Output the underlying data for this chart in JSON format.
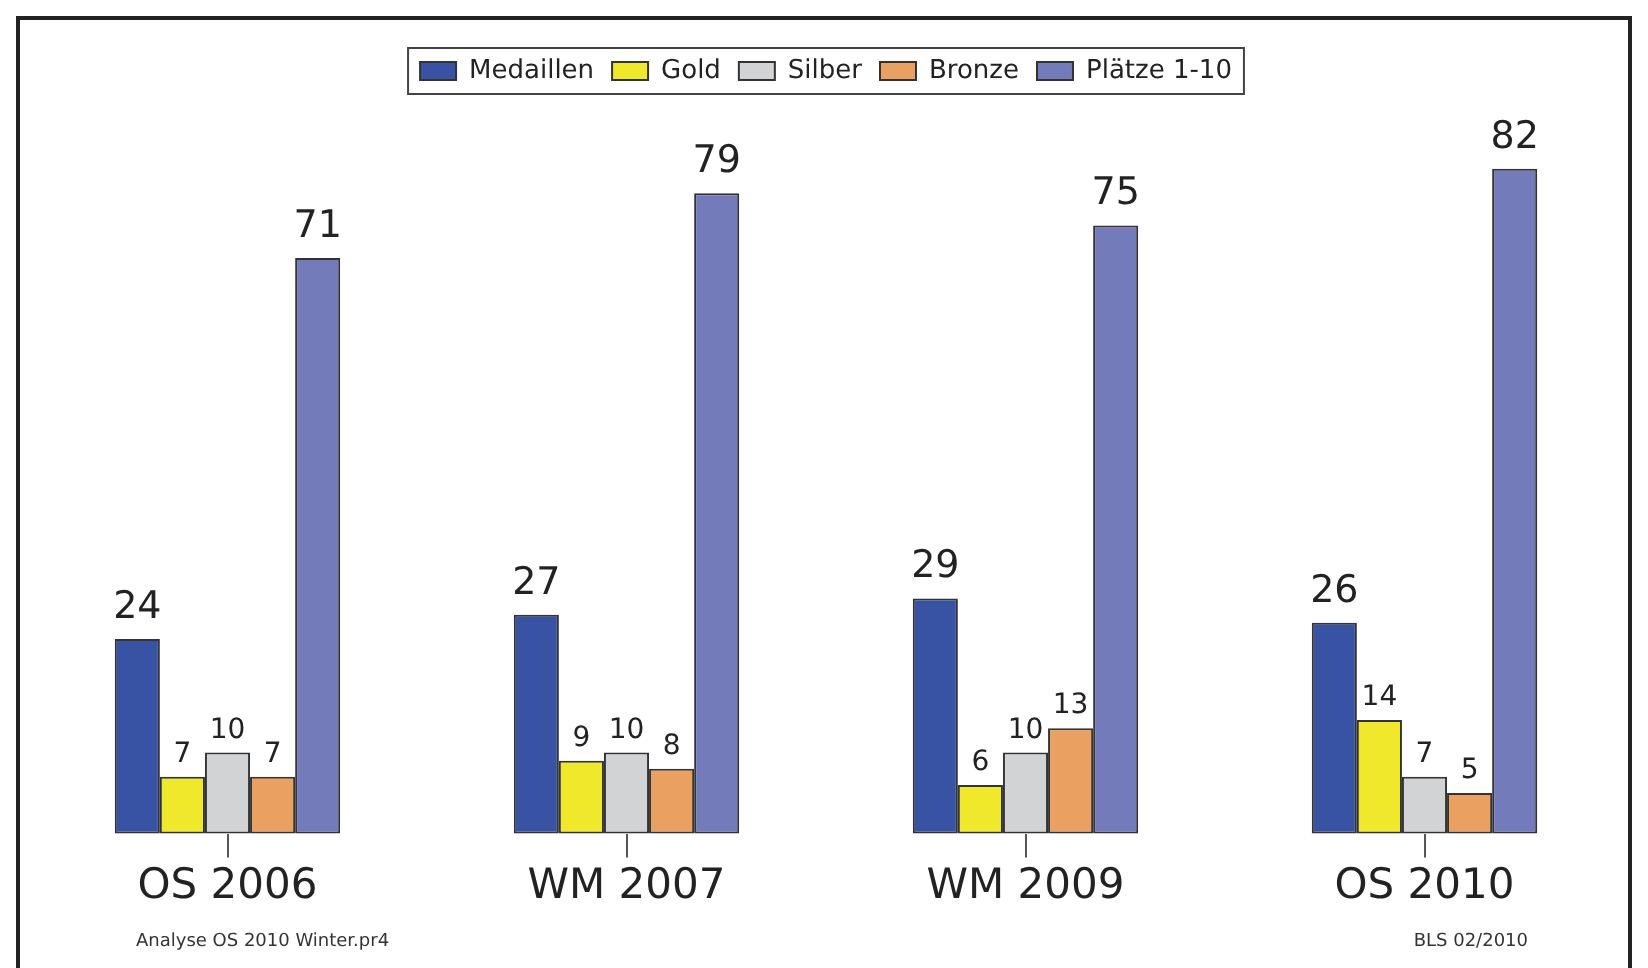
{
  "chart_data": {
    "type": "bar",
    "categories": [
      "OS 2006",
      "WM 2007",
      "WM 2009",
      "OS 2010"
    ],
    "series": [
      {
        "name": "Medaillen",
        "color": "#3853a4",
        "values": [
          24,
          27,
          29,
          26
        ]
      },
      {
        "name": "Gold",
        "color": "#f0e82a",
        "values": [
          7,
          9,
          6,
          14
        ]
      },
      {
        "name": "Silber",
        "color": "#d2d3d5",
        "values": [
          10,
          10,
          10,
          7
        ]
      },
      {
        "name": "Bronze",
        "color": "#e9a060",
        "values": [
          7,
          8,
          13,
          5
        ]
      },
      {
        "name": "Plätze 1-10",
        "color": "#747bbb",
        "values": [
          71,
          79,
          75,
          82
        ]
      }
    ],
    "data_labels": true,
    "legend": "top",
    "annotations": [
      "Analyse OS 2010 Winter.pr4",
      "BLS 02/2010"
    ]
  }
}
